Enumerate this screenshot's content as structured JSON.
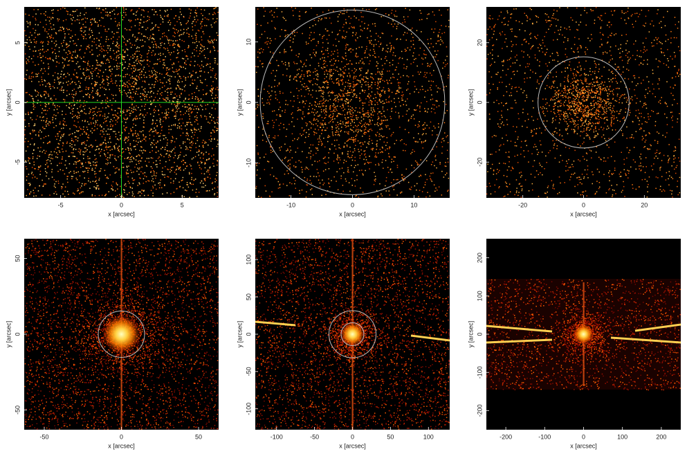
{
  "chart_data": [
    {
      "type": "image",
      "xlabel": "x [arcsec]",
      "ylabel": "y [arcsec]",
      "xlim": [
        -8,
        8
      ],
      "ylim": [
        -8,
        8
      ],
      "xticks": [
        -5,
        0,
        5
      ],
      "yticks": [
        -5,
        0,
        5
      ],
      "crosshair": [
        0,
        0
      ],
      "crosshair_color": "#22dd22"
    },
    {
      "type": "image",
      "xlabel": "x [arcsec]",
      "ylabel": "y [arcsec]",
      "xlim": [
        -15.8,
        15.8
      ],
      "ylim": [
        -15.8,
        15.8
      ],
      "xticks": [
        -10,
        0,
        10
      ],
      "yticks": [
        -10,
        0,
        10
      ],
      "circles": [
        15
      ],
      "circle_color": "#bbbbbb"
    },
    {
      "type": "image",
      "xlabel": "x [arcsec]",
      "ylabel": "y [arcsec]",
      "xlim": [
        -32,
        32
      ],
      "ylim": [
        -32,
        32
      ],
      "xticks": [
        -20,
        0,
        20
      ],
      "yticks": [
        -20,
        0,
        20
      ],
      "circles": [
        15
      ],
      "circle_color": "#bbbbbb"
    },
    {
      "type": "image",
      "xlabel": "x [arcsec]",
      "ylabel": "y [arcsec]",
      "xlim": [
        -63,
        63
      ],
      "ylim": [
        -63,
        63
      ],
      "xticks": [
        -50,
        0,
        50
      ],
      "yticks": [
        -50,
        0,
        50
      ],
      "circles": [
        15
      ],
      "circle_color": "#bbbbbb"
    },
    {
      "type": "image",
      "xlabel": "x [arcsec]",
      "ylabel": "y [arcsec]",
      "xlim": [
        -128,
        128
      ],
      "ylim": [
        -128,
        128
      ],
      "xticks": [
        -100,
        -50,
        0,
        50,
        100
      ],
      "yticks": [
        -100,
        -50,
        0,
        50,
        100
      ],
      "circles": [
        15,
        31
      ],
      "circle_color": "#bbbbbb"
    },
    {
      "type": "image",
      "xlabel": "x [arcsec]",
      "ylabel": "y [arcsec]",
      "xlim": [
        -250,
        250
      ],
      "ylim": [
        -250,
        250
      ],
      "xticks": [
        -200,
        -100,
        0,
        100,
        200
      ],
      "yticks": [
        -200,
        -100,
        0,
        100,
        200
      ]
    }
  ]
}
